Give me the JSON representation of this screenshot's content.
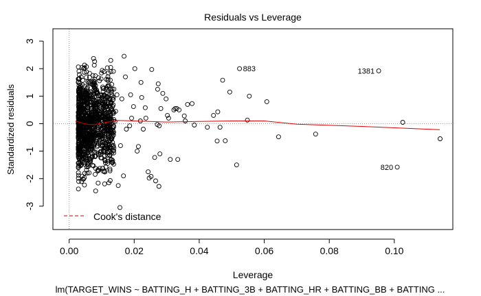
{
  "chart_data": {
    "type": "scatter",
    "title": "Residuals vs Leverage",
    "xlabel": "Leverage",
    "ylabel": "Standardized residuals",
    "subtitle": "lm(TARGET_WINS ~ BATTING_H + BATTING_3B + BATTING_HR + BATTING_BB + BATTING ...",
    "xlim": [
      -0.005,
      0.118
    ],
    "ylim": [
      -3.85,
      3.45
    ],
    "x_ticks": [
      "0.00",
      "0.02",
      "0.04",
      "0.06",
      "0.08",
      "0.10"
    ],
    "x_tick_values": [
      0,
      0.02,
      0.04,
      0.06,
      0.08,
      0.1
    ],
    "y_ticks": [
      "-3",
      "-2",
      "-1",
      "0",
      "1",
      "2",
      "3"
    ],
    "y_tick_values": [
      -3,
      -2,
      -1,
      0,
      1,
      2,
      3
    ],
    "legend": {
      "label": "Cook's distance",
      "color": "#cc0000",
      "position": "bottom-left"
    },
    "point_labels": [
      {
        "text": "883",
        "x": 0.0524,
        "y": 2.0
      },
      {
        "text": "1381",
        "x": 0.0952,
        "y": 1.92
      },
      {
        "text": "820",
        "x": 0.1009,
        "y": -1.58
      }
    ],
    "colors": {
      "points": "#000000",
      "smoother": "#e00000",
      "reference": "#999999"
    },
    "smoother": {
      "x": [
        0.002,
        0.004,
        0.006,
        0.008,
        0.01,
        0.015,
        0.02,
        0.03,
        0.04,
        0.05,
        0.06,
        0.07,
        0.08,
        0.09,
        0.1,
        0.114
      ],
      "y": [
        0.1,
        0.02,
        -0.03,
        -0.03,
        0.02,
        0.12,
        0.1,
        0.06,
        0.08,
        0.1,
        0.1,
        -0.02,
        -0.06,
        -0.1,
        -0.15,
        -0.22
      ]
    },
    "points": {
      "x": [
        0.0524,
        0.0952,
        0.1009,
        0.1026,
        0.1141,
        0.0758,
        0.0644,
        0.0608,
        0.0554,
        0.0548,
        0.0494,
        0.0515,
        0.0472,
        0.0457,
        0.048,
        0.0444,
        0.0455,
        0.0464,
        0.0425,
        0.0378,
        0.0364,
        0.0354,
        0.0331,
        0.0334,
        0.0322,
        0.0326,
        0.0306,
        0.0298,
        0.0288,
        0.0282,
        0.0276,
        0.0254,
        0.0263,
        0.0274,
        0.0272,
        0.0279,
        0.0271,
        0.0277,
        0.0252,
        0.0246,
        0.0234,
        0.0236,
        0.0213,
        0.0219,
        0.0223,
        0.0221,
        0.0202,
        0.0198,
        0.0189,
        0.0192,
        0.0186,
        0.0156,
        0.0169,
        0.0147,
        0.0128,
        0.0162,
        0.0158,
        0.0141,
        0.0133,
        0.0122,
        0.0385,
        0.0357,
        0.0338,
        0.0302,
        0.0311,
        0.0266,
        0.0243,
        0.0228,
        0.0209,
        0.0176,
        0.0173,
        0.0167,
        0.0151,
        0.0143,
        0.0136
      ],
      "y": [
        2.0,
        1.92,
        -1.58,
        0.05,
        -0.55,
        -0.38,
        -0.48,
        0.8,
        1.0,
        0.13,
        1.15,
        -1.5,
        1.58,
        0.43,
        -0.62,
        0.3,
        -0.63,
        -0.13,
        -0.13,
        0.73,
        0.7,
        0.28,
        0.55,
        -1.3,
        0.5,
        0.55,
        0.2,
        0.9,
        1.1,
        0.55,
        -2.28,
        1.97,
        -1.23,
        1.45,
        1.25,
        -1.1,
        -0.03,
        -0.08,
        -1.92,
        -1.98,
        0.58,
        0.2,
        -0.83,
        0.1,
        0.95,
        1.5,
        2.0,
        0.62,
        1.05,
        0.2,
        -0.08,
        -3.05,
        2.45,
        1.05,
        2.3,
        0.9,
        -0.8,
        0.08,
        -1.4,
        -2.15,
        -0.05,
        0.1,
        0.5,
        0.3,
        -1.3,
        -2.08,
        -1.75,
        -0.2,
        -1.0,
        -0.2,
        1.7,
        -1.9,
        -2.25,
        0.45,
        1.9
      ]
    }
  }
}
